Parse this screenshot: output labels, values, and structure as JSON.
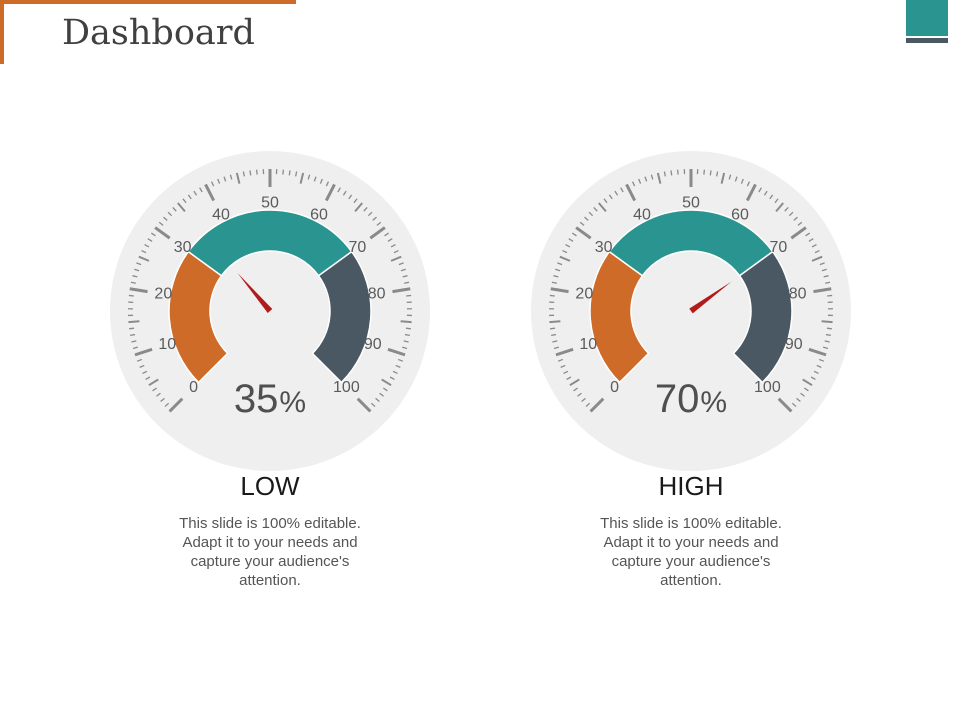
{
  "title": "Dashboard",
  "colors": {
    "accent_orange": "#cf6b28",
    "accent_teal": "#2a9590",
    "accent_slate": "#4a5863",
    "needle_red": "#b31b1b",
    "dial_background": "#efefef"
  },
  "gauges": [
    {
      "value": 35,
      "value_text": "35",
      "unit": "%",
      "label": "LOW",
      "description": "This slide is 100% editable. Adapt it to your needs and capture your audience's attention.",
      "scale_labels": [
        "0",
        "10",
        "20",
        "30",
        "40",
        "50",
        "60",
        "70",
        "80",
        "90",
        "100"
      ]
    },
    {
      "value": 70,
      "value_text": "70",
      "unit": "%",
      "label": "HIGH",
      "description": "This slide is 100% editable. Adapt it to your needs and capture your audience's attention.",
      "scale_labels": [
        "0",
        "10",
        "20",
        "30",
        "40",
        "50",
        "60",
        "70",
        "80",
        "90",
        "100"
      ]
    }
  ]
}
